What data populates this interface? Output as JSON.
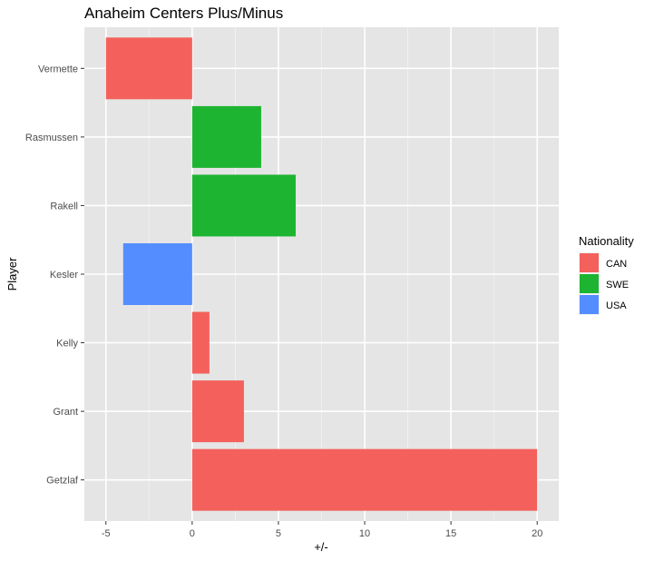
{
  "chart_data": {
    "type": "bar",
    "orientation": "horizontal",
    "title": "Anaheim Centers Plus/Minus",
    "xlabel": "+/-",
    "ylabel": "Player",
    "categories": [
      "Getzlaf",
      "Grant",
      "Kelly",
      "Kesler",
      "Rakell",
      "Rasmussen",
      "Vermette"
    ],
    "values": [
      20,
      3,
      1,
      -4,
      6,
      4,
      -5
    ],
    "nationality": [
      "CAN",
      "CAN",
      "CAN",
      "USA",
      "SWE",
      "SWE",
      "CAN"
    ],
    "xlim": [
      -6.25,
      21.25
    ],
    "x_ticks": [
      -5,
      0,
      5,
      10,
      15,
      20
    ],
    "x_tick_labels": [
      "-5",
      "0",
      "5",
      "10",
      "15",
      "20"
    ],
    "grid": true,
    "legend": {
      "title": "Nationality",
      "placement": "right",
      "entries": [
        {
          "label": "CAN",
          "color": "#F8766D"
        },
        {
          "label": "SWE",
          "color": "#1EB42B"
        },
        {
          "label": "USA",
          "color": "#619CFF"
        }
      ]
    },
    "colors": {
      "panel_background": "#E5E5E5",
      "grid_major": "#FFFFFF",
      "grid_minor": "#F2F2F2",
      "bar_CAN": "#F4615C",
      "bar_SWE": "#1DB432",
      "bar_USA": "#548DFF"
    }
  }
}
